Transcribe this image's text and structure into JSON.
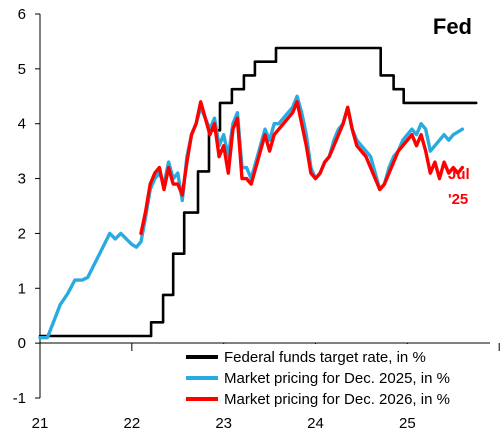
{
  "chart_data": {
    "type": "line",
    "title": "Fed",
    "xlabel": "",
    "ylabel": "",
    "x_ticks": [
      "21",
      "22",
      "23",
      "24",
      "25"
    ],
    "y_ticks": [
      -1,
      0,
      1,
      2,
      3,
      4,
      5,
      6
    ],
    "xlim": [
      2021.0,
      2025.9
    ],
    "ylim": [
      -1,
      6
    ],
    "legend_placement": "bottom-right",
    "annotation": {
      "line1": "Jul",
      "line2": "'25"
    },
    "series": [
      {
        "name": "Federal funds target rate, in %",
        "color": "#000000",
        "step": true,
        "points": [
          [
            2021.0,
            0.13
          ],
          [
            2022.21,
            0.13
          ],
          [
            2022.21,
            0.38
          ],
          [
            2022.34,
            0.38
          ],
          [
            2022.34,
            0.88
          ],
          [
            2022.45,
            0.88
          ],
          [
            2022.45,
            1.63
          ],
          [
            2022.57,
            1.63
          ],
          [
            2022.57,
            2.38
          ],
          [
            2022.72,
            2.38
          ],
          [
            2022.72,
            3.13
          ],
          [
            2022.84,
            3.13
          ],
          [
            2022.84,
            3.88
          ],
          [
            2022.96,
            3.88
          ],
          [
            2022.96,
            4.38
          ],
          [
            2023.09,
            4.38
          ],
          [
            2023.09,
            4.63
          ],
          [
            2023.22,
            4.63
          ],
          [
            2023.22,
            4.88
          ],
          [
            2023.34,
            4.88
          ],
          [
            2023.34,
            5.13
          ],
          [
            2023.57,
            5.13
          ],
          [
            2023.57,
            5.38
          ],
          [
            2024.71,
            5.38
          ],
          [
            2024.71,
            4.88
          ],
          [
            2024.85,
            4.88
          ],
          [
            2024.85,
            4.63
          ],
          [
            2024.96,
            4.63
          ],
          [
            2024.96,
            4.38
          ],
          [
            2025.75,
            4.38
          ]
        ]
      },
      {
        "name": "Market pricing for Dec. 2025, in %",
        "color": "#29abe2",
        "step": false,
        "points": [
          [
            2021.0,
            0.1
          ],
          [
            2021.08,
            0.1
          ],
          [
            2021.15,
            0.4
          ],
          [
            2021.22,
            0.7
          ],
          [
            2021.3,
            0.9
          ],
          [
            2021.38,
            1.15
          ],
          [
            2021.46,
            1.15
          ],
          [
            2021.52,
            1.2
          ],
          [
            2021.58,
            1.4
          ],
          [
            2021.64,
            1.6
          ],
          [
            2021.7,
            1.8
          ],
          [
            2021.76,
            2.0
          ],
          [
            2021.82,
            1.9
          ],
          [
            2021.88,
            2.0
          ],
          [
            2021.94,
            1.9
          ],
          [
            2022.0,
            1.8
          ],
          [
            2022.05,
            1.75
          ],
          [
            2022.1,
            1.85
          ],
          [
            2022.15,
            2.3
          ],
          [
            2022.2,
            2.8
          ],
          [
            2022.25,
            3.0
          ],
          [
            2022.3,
            3.1
          ],
          [
            2022.35,
            2.9
          ],
          [
            2022.4,
            3.3
          ],
          [
            2022.45,
            3.0
          ],
          [
            2022.5,
            3.1
          ],
          [
            2022.55,
            2.6
          ],
          [
            2022.6,
            3.4
          ],
          [
            2022.65,
            3.8
          ],
          [
            2022.7,
            4.0
          ],
          [
            2022.75,
            4.3
          ],
          [
            2022.8,
            4.1
          ],
          [
            2022.85,
            3.9
          ],
          [
            2022.9,
            4.1
          ],
          [
            2022.95,
            3.6
          ],
          [
            2023.0,
            3.8
          ],
          [
            2023.05,
            3.4
          ],
          [
            2023.1,
            4.0
          ],
          [
            2023.15,
            4.2
          ],
          [
            2023.2,
            3.2
          ],
          [
            2023.25,
            3.2
          ],
          [
            2023.3,
            3.0
          ],
          [
            2023.35,
            3.3
          ],
          [
            2023.4,
            3.6
          ],
          [
            2023.45,
            3.9
          ],
          [
            2023.5,
            3.7
          ],
          [
            2023.55,
            4.0
          ],
          [
            2023.6,
            4.0
          ],
          [
            2023.65,
            4.1
          ],
          [
            2023.7,
            4.2
          ],
          [
            2023.75,
            4.3
          ],
          [
            2023.8,
            4.5
          ],
          [
            2023.85,
            4.2
          ],
          [
            2023.9,
            3.8
          ],
          [
            2023.95,
            3.2
          ],
          [
            2024.0,
            3.0
          ],
          [
            2024.05,
            3.1
          ],
          [
            2024.1,
            3.3
          ],
          [
            2024.15,
            3.4
          ],
          [
            2024.2,
            3.7
          ],
          [
            2024.25,
            3.9
          ],
          [
            2024.3,
            4.0
          ],
          [
            2024.35,
            4.3
          ],
          [
            2024.4,
            3.9
          ],
          [
            2024.45,
            3.7
          ],
          [
            2024.5,
            3.6
          ],
          [
            2024.55,
            3.5
          ],
          [
            2024.6,
            3.4
          ],
          [
            2024.65,
            3.1
          ],
          [
            2024.7,
            2.8
          ],
          [
            2024.75,
            2.9
          ],
          [
            2024.8,
            3.2
          ],
          [
            2024.85,
            3.4
          ],
          [
            2024.9,
            3.5
          ],
          [
            2024.95,
            3.7
          ],
          [
            2025.0,
            3.8
          ],
          [
            2025.05,
            3.9
          ],
          [
            2025.1,
            3.8
          ],
          [
            2025.15,
            4.0
          ],
          [
            2025.2,
            3.9
          ],
          [
            2025.25,
            3.5
          ],
          [
            2025.3,
            3.6
          ],
          [
            2025.35,
            3.7
          ],
          [
            2025.4,
            3.8
          ],
          [
            2025.45,
            3.7
          ],
          [
            2025.5,
            3.8
          ],
          [
            2025.55,
            3.85
          ],
          [
            2025.6,
            3.9
          ]
        ]
      },
      {
        "name": "Market pricing for Dec. 2026, in %",
        "color": "#ff0000",
        "step": false,
        "points": [
          [
            2022.1,
            2.0
          ],
          [
            2022.15,
            2.4
          ],
          [
            2022.2,
            2.9
          ],
          [
            2022.25,
            3.1
          ],
          [
            2022.3,
            3.2
          ],
          [
            2022.35,
            2.8
          ],
          [
            2022.4,
            3.2
          ],
          [
            2022.45,
            2.9
          ],
          [
            2022.5,
            2.9
          ],
          [
            2022.55,
            2.7
          ],
          [
            2022.6,
            3.3
          ],
          [
            2022.65,
            3.8
          ],
          [
            2022.7,
            4.0
          ],
          [
            2022.75,
            4.4
          ],
          [
            2022.8,
            4.1
          ],
          [
            2022.85,
            3.8
          ],
          [
            2022.9,
            4.0
          ],
          [
            2022.95,
            3.4
          ],
          [
            2023.0,
            3.6
          ],
          [
            2023.05,
            3.1
          ],
          [
            2023.1,
            3.9
          ],
          [
            2023.15,
            4.1
          ],
          [
            2023.2,
            3.0
          ],
          [
            2023.25,
            3.0
          ],
          [
            2023.3,
            2.9
          ],
          [
            2023.35,
            3.2
          ],
          [
            2023.4,
            3.5
          ],
          [
            2023.45,
            3.8
          ],
          [
            2023.5,
            3.5
          ],
          [
            2023.55,
            3.8
          ],
          [
            2023.6,
            3.9
          ],
          [
            2023.65,
            4.0
          ],
          [
            2023.7,
            4.1
          ],
          [
            2023.75,
            4.2
          ],
          [
            2023.8,
            4.4
          ],
          [
            2023.85,
            4.0
          ],
          [
            2023.9,
            3.6
          ],
          [
            2023.95,
            3.1
          ],
          [
            2024.0,
            3.0
          ],
          [
            2024.05,
            3.1
          ],
          [
            2024.1,
            3.3
          ],
          [
            2024.15,
            3.4
          ],
          [
            2024.2,
            3.6
          ],
          [
            2024.25,
            3.8
          ],
          [
            2024.3,
            4.0
          ],
          [
            2024.35,
            4.3
          ],
          [
            2024.4,
            3.9
          ],
          [
            2024.45,
            3.6
          ],
          [
            2024.5,
            3.5
          ],
          [
            2024.55,
            3.4
          ],
          [
            2024.6,
            3.2
          ],
          [
            2024.65,
            3.0
          ],
          [
            2024.7,
            2.8
          ],
          [
            2024.75,
            2.9
          ],
          [
            2024.8,
            3.1
          ],
          [
            2024.85,
            3.3
          ],
          [
            2024.9,
            3.5
          ],
          [
            2024.95,
            3.6
          ],
          [
            2025.0,
            3.7
          ],
          [
            2025.05,
            3.8
          ],
          [
            2025.1,
            3.6
          ],
          [
            2025.15,
            3.8
          ],
          [
            2025.2,
            3.5
          ],
          [
            2025.25,
            3.1
          ],
          [
            2025.3,
            3.3
          ],
          [
            2025.35,
            3.0
          ],
          [
            2025.4,
            3.3
          ],
          [
            2025.45,
            3.1
          ],
          [
            2025.5,
            3.2
          ],
          [
            2025.55,
            3.1
          ],
          [
            2025.6,
            3.2
          ]
        ]
      }
    ]
  }
}
